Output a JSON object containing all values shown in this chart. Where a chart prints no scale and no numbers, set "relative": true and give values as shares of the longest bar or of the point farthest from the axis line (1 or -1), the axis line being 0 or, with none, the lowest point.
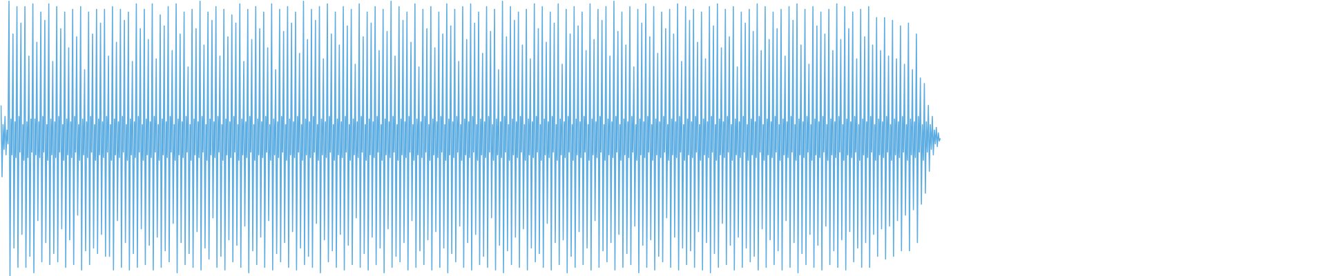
{
  "chart_data": {
    "type": "line",
    "relative": true,
    "tick_labels": false,
    "categories": [
      null,
      null,
      null,
      null,
      null,
      null,
      null,
      null,
      null,
      null,
      null,
      null,
      null,
      null,
      null,
      null,
      null,
      null,
      null,
      null,
      null,
      null,
      null,
      null,
      null,
      null,
      null,
      null,
      null,
      null,
      null,
      null,
      null,
      null,
      null,
      null,
      null,
      null,
      null,
      null,
      null,
      null,
      null,
      null,
      null,
      null,
      null,
      null,
      null,
      null,
      null,
      null,
      null,
      null,
      null,
      null,
      null,
      null,
      null,
      null,
      null,
      null,
      null,
      null,
      null,
      null,
      null,
      null,
      null,
      null,
      null,
      null,
      null,
      null,
      null,
      null,
      null,
      null,
      null,
      null,
      null,
      null,
      null,
      null,
      null,
      null,
      null,
      null,
      null,
      null,
      null,
      null,
      null,
      null,
      null,
      null,
      null,
      null,
      null,
      null,
      null,
      null,
      null,
      null,
      null,
      null,
      null,
      null,
      null,
      null,
      null,
      null,
      null,
      null,
      null,
      null,
      null,
      null,
      null,
      null,
      null,
      null,
      null,
      null,
      null,
      null,
      null,
      null,
      null,
      null,
      null,
      null,
      null,
      null,
      null,
      null,
      null,
      null,
      null,
      null,
      null,
      null,
      null,
      null,
      null,
      null,
      null,
      null,
      null,
      null,
      null,
      null,
      null,
      null,
      null,
      null,
      null,
      null,
      null,
      null,
      null,
      null,
      null,
      null,
      null,
      null,
      null,
      null,
      null,
      null,
      null,
      null,
      null,
      null,
      null,
      null,
      null,
      null,
      null,
      null,
      null,
      null,
      null,
      null,
      null,
      null,
      null,
      null,
      null,
      null,
      null,
      null,
      null,
      null,
      null,
      null,
      null,
      null,
      null,
      null,
      null,
      null,
      null,
      null,
      null,
      null,
      null,
      null,
      null,
      null,
      null,
      null,
      null,
      null,
      null,
      null,
      null,
      null,
      null,
      null,
      null,
      null,
      null,
      null,
      null,
      null,
      null,
      null,
      null,
      null,
      null,
      null,
      null,
      null,
      null,
      null,
      null,
      null,
      null,
      null,
      null,
      null,
      null,
      null,
      null,
      null,
      null,
      null,
      null,
      null,
      null,
      null,
      null,
      null,
      null,
      null,
      null,
      null,
      null,
      null,
      null,
      null,
      null,
      null,
      null,
      null,
      null,
      null,
      null,
      null,
      null,
      null,
      null,
      null,
      null,
      null,
      null,
      null,
      null,
      null,
      null,
      null,
      null,
      null,
      null,
      null,
      null,
      null,
      null,
      null,
      null,
      null,
      null,
      null,
      null,
      null,
      null,
      null,
      null,
      null,
      null,
      null,
      null,
      null,
      null,
      null,
      null,
      null,
      null,
      null,
      null,
      null,
      null,
      null,
      null,
      null,
      null,
      null,
      null,
      null,
      null,
      null,
      null,
      null,
      null,
      null,
      null,
      null,
      null,
      null,
      null,
      null,
      null,
      null,
      null,
      null,
      null,
      null,
      null,
      null,
      null,
      null,
      null,
      null,
      null,
      null,
      null,
      null,
      null,
      null,
      null,
      null,
      null,
      null,
      null,
      null,
      null,
      null,
      null,
      null,
      null,
      null,
      null,
      null,
      null,
      null,
      null,
      null,
      null,
      null,
      null,
      null,
      null,
      null,
      null,
      null,
      null,
      null,
      null,
      null,
      null,
      null,
      null,
      null,
      null,
      null,
      null,
      null,
      null,
      null,
      null,
      null,
      null,
      null,
      null,
      null,
      null,
      null,
      null,
      null,
      null,
      null,
      null,
      null,
      null,
      null,
      null,
      null,
      null,
      null,
      null,
      null,
      null,
      null,
      null,
      null,
      null,
      null,
      null,
      null,
      null,
      null,
      null,
      null,
      null,
      null,
      null,
      null,
      null,
      null,
      null,
      null,
      null,
      null,
      null,
      null,
      null,
      null,
      null,
      null,
      null,
      null,
      null,
      null,
      null,
      null,
      null,
      null,
      null,
      null,
      null,
      null,
      null,
      null,
      null,
      null,
      null,
      null,
      null,
      null,
      null,
      null,
      null,
      null,
      null,
      null,
      null,
      null,
      null,
      null,
      null,
      null,
      null,
      null,
      null,
      null,
      null,
      null,
      null,
      null,
      null,
      null,
      null,
      null,
      null,
      null,
      null,
      null,
      null,
      null,
      null,
      null,
      null,
      null,
      null,
      null,
      null,
      null,
      null,
      null,
      null,
      null,
      null,
      null,
      null,
      null,
      null,
      null,
      null,
      null,
      null,
      null,
      null,
      null,
      null,
      null,
      null,
      null,
      null,
      null,
      null,
      null,
      null,
      null,
      null,
      null,
      null,
      null,
      null,
      null,
      null,
      null,
      null,
      null,
      null,
      null,
      null,
      null,
      null,
      null,
      null,
      null,
      null,
      null,
      null,
      null,
      null,
      null,
      null,
      null,
      null,
      null,
      null,
      null,
      null,
      null,
      null,
      null,
      null,
      null,
      null,
      null,
      null,
      null,
      null,
      null,
      null,
      null,
      null,
      null,
      null,
      null,
      null,
      null,
      null,
      null,
      null,
      null,
      null,
      null,
      null,
      null,
      null,
      null,
      null,
      null,
      null,
      null,
      null,
      null,
      null,
      null,
      null,
      null,
      null,
      null,
      null,
      null,
      null,
      null,
      null,
      null,
      null,
      null,
      null,
      null,
      null,
      null,
      null,
      null,
      null,
      null,
      null,
      null,
      null,
      null,
      null,
      null,
      null,
      null,
      null,
      null,
      null,
      null,
      null,
      null,
      null,
      null,
      null,
      null,
      null,
      null,
      null,
      null,
      null,
      null,
      null,
      null,
      null,
      null,
      null,
      null,
      null,
      null,
      null,
      null,
      null,
      null,
      null,
      null,
      null,
      null,
      null,
      null,
      null,
      null,
      null,
      null,
      null,
      null,
      null,
      null,
      null,
      null,
      null,
      null,
      null,
      null,
      null,
      null,
      null,
      null,
      null,
      null,
      null,
      null,
      null,
      null,
      null,
      null,
      null,
      null,
      null,
      null,
      null,
      null,
      null,
      null,
      null,
      null,
      null,
      null,
      null,
      null,
      null,
      null,
      null,
      null,
      null,
      null,
      null,
      null,
      null,
      null,
      null,
      null,
      null,
      null,
      null,
      null,
      null,
      null,
      null,
      null,
      null,
      null,
      null,
      null,
      null,
      null,
      null,
      null,
      null,
      null,
      null,
      null,
      null,
      null,
      null,
      null,
      null,
      null,
      null,
      null,
      null,
      null,
      null,
      null,
      null,
      null,
      null,
      null,
      null,
      null,
      null,
      null,
      null,
      null,
      null,
      null,
      null,
      null,
      null,
      null,
      null,
      null,
      null,
      null,
      null,
      null,
      null,
      null,
      null,
      null,
      null,
      null,
      null,
      null,
      null,
      null,
      null,
      null,
      null,
      null,
      null,
      null,
      null,
      null,
      null,
      null,
      null,
      null,
      null,
      null,
      null,
      null,
      null,
      null,
      null,
      null,
      null,
      null,
      null,
      null,
      null,
      null,
      null,
      null,
      null,
      null,
      null,
      null,
      null,
      null,
      null,
      null,
      null,
      null,
      null,
      null,
      null,
      null,
      null,
      null,
      null,
      null,
      null,
      null,
      null,
      null,
      null,
      null,
      null,
      null,
      null,
      null,
      null,
      null,
      null,
      null,
      null,
      null,
      null,
      null,
      null,
      null,
      null,
      null,
      null,
      null,
      null,
      null,
      null,
      null,
      null,
      null,
      null,
      null,
      null,
      null,
      null,
      null,
      null,
      null,
      null,
      null,
      null,
      null,
      null,
      null,
      null,
      null,
      null,
      null,
      null,
      null,
      null,
      null,
      null,
      null,
      null,
      null,
      null,
      null,
      null,
      null,
      null,
      null,
      null,
      null,
      null,
      null,
      null,
      null,
      null,
      null,
      null,
      null,
      null,
      null,
      null,
      null,
      null,
      null,
      null,
      null,
      null,
      null,
      null,
      null,
      null,
      null,
      null,
      null,
      null,
      null,
      null,
      null,
      null,
      null,
      null,
      null,
      null,
      null,
      null,
      null,
      null,
      null,
      null,
      null,
      null,
      null,
      null,
      null,
      null,
      null,
      null,
      null,
      null,
      null,
      null,
      null,
      null,
      null,
      null,
      null,
      null,
      null,
      null,
      null,
      null,
      null,
      null,
      null,
      null
    ],
    "series": [
      {
        "color": "#5dade2",
        "values": [
          0.62,
          0.36,
          0.55,
          0.46,
          0.58,
          0.44,
          0.53,
          0.48,
          1.0,
          0.0,
          0.57,
          0.44,
          0.88,
          0.1,
          0.56,
          0.43,
          0.98,
          0.03,
          0.58,
          0.45,
          0.92,
          0.15,
          0.55,
          0.42,
          0.98,
          0.03,
          0.56,
          0.43,
          0.8,
          0.07,
          0.57,
          0.45,
          0.99,
          0.01,
          0.57,
          0.44,
          0.85,
          0.2,
          0.56,
          0.43,
          0.96,
          0.05,
          0.58,
          0.45,
          0.93,
          0.12,
          0.55,
          0.42,
          0.99,
          0.04,
          0.57,
          0.44,
          0.78,
          0.08,
          0.56,
          0.43,
          0.98,
          0.05,
          0.58,
          0.45,
          0.9,
          0.17,
          0.55,
          0.42,
          0.96,
          0.03,
          0.57,
          0.44,
          0.83,
          0.13,
          0.56,
          0.43,
          0.97,
          0.04,
          0.58,
          0.45,
          0.87,
          0.22,
          0.55,
          0.42,
          0.98,
          0.02,
          0.57,
          0.44,
          0.75,
          0.09,
          0.56,
          0.43,
          0.96,
          0.04,
          0.58,
          0.45,
          0.88,
          0.1,
          0.55,
          0.42,
          0.97,
          0.08,
          0.57,
          0.44,
          0.92,
          0.15,
          0.56,
          0.43,
          0.97,
          0.07,
          0.58,
          0.45,
          0.8,
          0.07,
          0.55,
          0.42,
          0.98,
          0.02,
          0.57,
          0.44,
          0.85,
          0.2,
          0.56,
          0.43,
          0.97,
          0.03,
          0.58,
          0.45,
          0.93,
          0.12,
          0.55,
          0.42,
          0.96,
          0.02,
          0.57,
          0.44,
          0.78,
          0.08,
          0.56,
          0.43,
          0.99,
          0.03,
          0.58,
          0.45,
          0.9,
          0.17,
          0.55,
          0.42,
          0.97,
          0.04,
          0.57,
          0.44,
          0.86,
          0.11,
          0.56,
          0.43,
          0.99,
          0.02,
          0.58,
          0.45,
          0.79,
          0.14,
          0.55,
          0.42,
          0.95,
          0.03,
          0.57,
          0.44,
          0.91,
          0.09,
          0.56,
          0.43,
          0.98,
          0.05,
          0.58,
          0.45,
          0.82,
          0.19,
          0.55,
          0.42,
          0.99,
          0.01,
          0.57,
          0.44,
          0.88,
          0.12,
          0.56,
          0.43,
          0.96,
          0.04,
          0.58,
          0.45,
          0.76,
          0.08,
          0.55,
          0.42,
          0.97,
          0.03,
          0.57,
          0.44,
          0.9,
          0.16,
          0.56,
          0.43,
          1.0,
          0.02,
          0.58,
          0.45,
          0.84,
          0.1,
          0.55,
          0.42,
          0.96,
          0.06,
          0.57,
          0.44,
          0.93,
          0.21,
          0.56,
          0.43,
          0.98,
          0.03,
          0.58,
          0.45,
          0.8,
          0.07,
          0.55,
          0.42,
          0.97,
          0.02,
          0.57,
          0.44,
          0.87,
          0.13,
          0.56,
          0.43,
          0.95,
          0.05,
          0.58,
          0.45,
          0.92,
          0.11,
          0.55,
          0.42,
          0.99,
          0.03,
          0.57,
          0.44,
          0.78,
          0.18,
          0.56,
          0.43,
          0.97,
          0.01,
          0.58,
          0.45,
          0.86,
          0.09,
          0.55,
          0.42,
          0.98,
          0.04,
          0.57,
          0.44,
          0.9,
          0.14,
          0.56,
          0.43,
          0.96,
          0.03,
          0.58,
          0.45,
          0.83,
          0.2,
          0.55,
          0.42,
          0.99,
          0.02,
          0.57,
          0.44,
          0.75,
          0.08,
          0.56,
          0.43,
          0.97,
          0.05,
          0.58,
          0.45,
          0.89,
          0.12,
          0.55,
          0.42,
          0.98,
          0.03,
          0.57,
          0.44,
          0.92,
          0.16,
          0.56,
          0.43,
          0.96,
          0.02,
          0.58,
          0.45,
          0.81,
          0.1,
          0.55,
          0.42,
          1.0,
          0.04,
          0.57,
          0.44,
          0.86,
          0.07,
          0.56,
          0.43,
          0.97,
          0.03,
          0.58,
          0.45,
          0.93,
          0.19,
          0.55,
          0.42,
          0.98,
          0.01,
          0.57,
          0.44,
          0.79,
          0.13,
          0.56,
          0.43,
          0.99,
          0.05,
          0.58,
          0.45,
          0.88,
          0.09,
          0.55,
          0.42,
          0.96,
          0.03,
          0.57,
          0.44,
          0.84,
          0.15,
          0.56,
          0.43,
          0.98,
          0.02,
          0.58,
          0.45,
          0.91,
          0.11,
          0.55,
          0.42,
          0.97,
          0.04,
          0.57,
          0.44,
          0.77,
          0.21,
          0.56,
          0.43,
          0.99,
          0.03,
          0.58,
          0.45,
          0.87,
          0.08,
          0.55,
          0.42,
          0.96,
          0.02,
          0.57,
          0.44,
          0.92,
          0.14,
          0.56,
          0.43,
          0.98,
          0.04,
          0.58,
          0.45,
          0.82,
          0.1,
          0.55,
          0.42,
          0.97,
          0.01,
          0.57,
          0.44,
          0.89,
          0.17,
          0.56,
          0.43,
          1.0,
          0.03,
          0.58,
          0.45,
          0.8,
          0.07,
          0.55,
          0.42,
          0.98,
          0.05,
          0.57,
          0.44,
          0.93,
          0.12,
          0.56,
          0.43,
          0.96,
          0.02,
          0.58,
          0.45,
          0.85,
          0.2,
          0.55,
          0.42,
          0.99,
          0.03,
          0.57,
          0.44,
          0.76,
          0.09,
          0.56,
          0.43,
          0.97,
          0.04,
          0.58,
          0.45,
          0.9,
          0.13,
          0.55,
          0.42,
          0.98,
          0.02,
          0.57,
          0.44,
          0.83,
          0.16,
          0.56,
          0.43,
          0.96,
          0.03,
          0.58,
          0.45,
          0.88,
          0.1,
          0.55,
          0.42,
          0.99,
          0.01,
          0.57,
          0.44,
          0.91,
          0.08,
          0.56,
          0.43,
          0.97,
          0.05,
          0.58,
          0.45,
          0.78,
          0.18,
          0.55,
          0.42,
          0.98,
          0.03,
          0.57,
          0.44,
          0.86,
          0.12,
          0.56,
          0.43,
          0.99,
          0.02,
          0.58,
          0.45,
          0.92,
          0.15,
          0.55,
          0.42,
          0.96,
          0.04,
          0.57,
          0.44,
          0.81,
          0.07,
          0.56,
          0.43,
          0.98,
          0.03,
          0.58,
          0.45,
          0.89,
          0.21,
          0.55,
          0.42,
          0.97,
          0.02,
          0.57,
          0.44,
          0.75,
          0.11,
          0.56,
          0.43,
          1.0,
          0.01,
          0.58,
          0.45,
          0.87,
          0.09,
          0.55,
          0.42,
          0.98,
          0.04,
          0.57,
          0.44,
          0.93,
          0.14,
          0.56,
          0.43,
          0.96,
          0.03,
          0.58,
          0.45,
          0.84,
          0.17,
          0.55,
          0.42,
          0.97,
          0.02,
          0.57,
          0.44,
          0.79,
          0.1,
          0.56,
          0.43,
          0.99,
          0.05,
          0.58,
          0.45,
          0.9,
          0.08,
          0.55,
          0.42,
          0.98,
          0.03,
          0.57,
          0.44,
          0.85,
          0.19,
          0.56,
          0.43,
          0.96,
          0.02,
          0.58,
          0.45,
          0.92,
          0.12,
          0.55,
          0.42,
          0.99,
          0.04,
          0.57,
          0.44,
          0.77,
          0.13,
          0.56,
          0.43,
          0.97,
          0.01,
          0.58,
          0.45,
          0.88,
          0.07,
          0.55,
          0.42,
          0.98,
          0.03,
          0.57,
          0.44,
          0.91,
          0.16,
          0.56,
          0.43,
          0.96,
          0.04,
          0.58,
          0.45,
          0.82,
          0.1,
          0.55,
          0.42,
          0.99,
          0.02,
          0.57,
          0.44,
          0.86,
          0.2,
          0.56,
          0.43,
          0.97,
          0.03,
          0.58,
          0.45,
          0.93,
          0.09,
          0.55,
          0.42,
          0.98,
          0.05,
          0.57,
          0.44,
          0.8,
          0.12,
          0.56,
          0.43,
          1.0,
          0.02,
          0.58,
          0.45,
          0.89,
          0.15,
          0.55,
          0.42,
          0.96,
          0.03,
          0.57,
          0.44,
          0.84,
          0.08,
          0.56,
          0.43,
          0.98,
          0.04,
          0.58,
          0.45,
          0.76,
          0.18,
          0.55,
          0.42,
          0.97,
          0.01,
          0.57,
          0.44,
          0.92,
          0.11,
          0.56,
          0.43,
          0.99,
          0.03,
          0.58,
          0.45,
          0.87,
          0.13,
          0.55,
          0.42,
          0.98,
          0.02,
          0.57,
          0.44,
          0.81,
          0.07,
          0.56,
          0.43,
          0.96,
          0.05,
          0.58,
          0.45,
          0.9,
          0.21,
          0.55,
          0.42,
          0.97,
          0.03,
          0.57,
          0.44,
          0.88,
          0.14,
          0.56,
          0.43,
          0.99,
          0.02,
          0.58,
          0.45,
          0.78,
          0.1,
          0.55,
          0.42,
          0.98,
          0.04,
          0.57,
          0.44,
          0.93,
          0.09,
          0.56,
          0.43,
          0.97,
          0.03,
          0.58,
          0.45,
          0.85,
          0.16,
          0.55,
          0.42,
          0.96,
          0.02,
          0.57,
          0.44,
          0.79,
          0.12,
          0.56,
          0.43,
          0.98,
          0.01,
          0.58,
          0.45,
          0.91,
          0.08,
          0.55,
          0.42,
          0.99,
          0.03,
          0.57,
          0.44,
          0.83,
          0.19,
          0.56,
          0.43,
          0.97,
          0.04,
          0.58,
          0.45,
          0.87,
          0.11,
          0.55,
          0.42,
          0.98,
          0.02,
          0.57,
          0.44,
          0.76,
          0.14,
          0.56,
          0.43,
          0.96,
          0.03,
          0.58,
          0.45,
          0.92,
          0.1,
          0.55,
          0.42,
          0.97,
          0.05,
          0.57,
          0.44,
          0.89,
          0.07,
          0.56,
          0.43,
          0.99,
          0.02,
          0.58,
          0.45,
          0.82,
          0.17,
          0.55,
          0.42,
          0.98,
          0.03,
          0.57,
          0.44,
          0.86,
          0.13,
          0.56,
          0.43,
          0.96,
          0.04,
          0.58,
          0.45,
          0.9,
          0.09,
          0.55,
          0.42,
          0.97,
          0.02,
          0.57,
          0.44,
          0.8,
          0.2,
          0.56,
          0.43,
          0.98,
          0.03,
          0.58,
          0.45,
          0.93,
          0.12,
          0.55,
          0.42,
          0.99,
          0.01,
          0.57,
          0.44,
          0.84,
          0.08,
          0.56,
          0.43,
          0.97,
          0.04,
          0.58,
          0.45,
          0.77,
          0.15,
          0.55,
          0.42,
          0.98,
          0.03,
          0.57,
          0.44,
          0.91,
          0.11,
          0.56,
          0.43,
          0.96,
          0.02,
          0.58,
          0.45,
          0.88,
          0.18,
          0.55,
          0.42,
          0.97,
          0.04,
          0.57,
          0.44,
          0.82,
          0.09,
          0.56,
          0.43,
          0.99,
          0.03,
          0.58,
          0.45,
          0.86,
          0.13,
          0.55,
          0.42,
          0.98,
          0.02,
          0.57,
          0.44,
          0.9,
          0.16,
          0.56,
          0.43,
          0.96,
          0.05,
          0.58,
          0.45,
          0.79,
          0.1,
          0.55,
          0.42,
          0.97,
          0.03,
          0.57,
          0.44,
          0.87,
          0.12,
          0.56,
          0.43,
          0.98,
          0.03,
          0.58,
          0.45,
          0.84,
          0.15,
          0.55,
          0.42,
          0.94,
          0.07,
          0.57,
          0.44,
          0.82,
          0.17,
          0.56,
          0.43,
          0.94,
          0.06,
          0.58,
          0.45,
          0.8,
          0.18,
          0.55,
          0.42,
          0.93,
          0.07,
          0.57,
          0.44,
          0.79,
          0.2,
          0.56,
          0.43,
          0.91,
          0.09,
          0.58,
          0.45,
          0.77,
          0.22,
          0.55,
          0.42,
          0.92,
          0.09,
          0.57,
          0.44,
          0.75,
          0.24,
          0.56,
          0.43,
          0.88,
          0.12,
          0.58,
          0.45,
          0.72,
          0.26,
          0.55,
          0.42,
          0.7,
          0.3,
          0.56,
          0.45,
          0.62,
          0.38,
          0.55,
          0.46,
          0.58,
          0.44,
          0.53,
          0.48,
          0.54,
          0.47,
          0.52,
          0.49,
          0.5
        ]
      }
    ]
  }
}
